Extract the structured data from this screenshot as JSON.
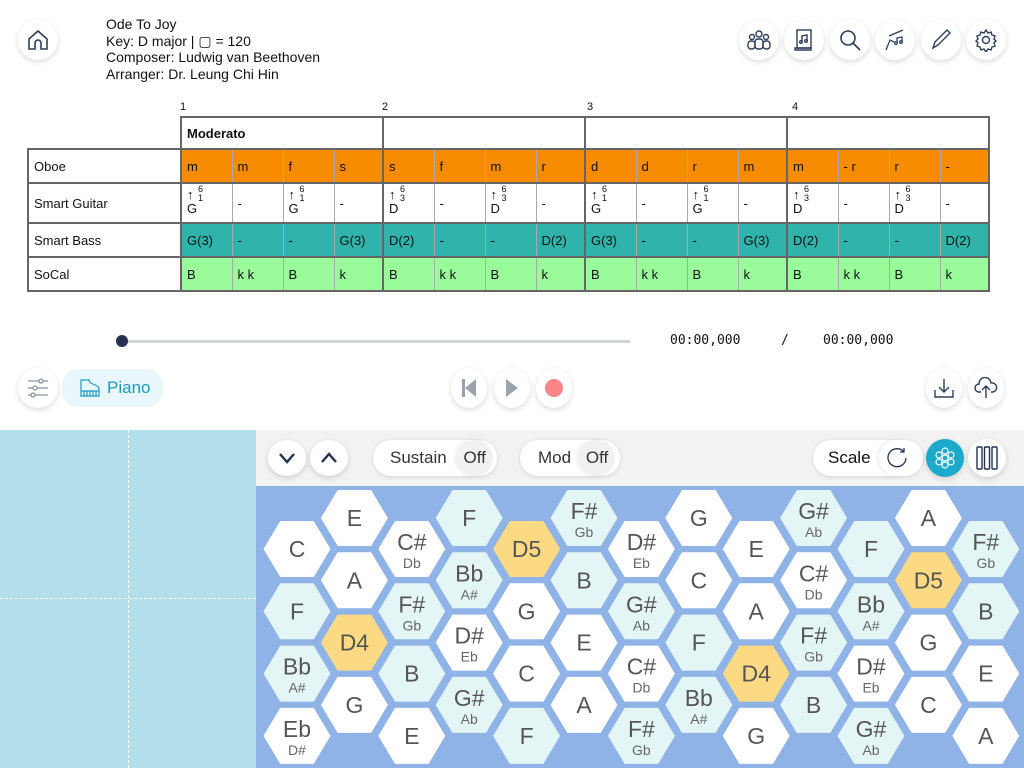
{
  "song": {
    "title": "Ode To Joy",
    "key_line": "Key: D major | ▢ = 120",
    "composer": "Composer: Ludwig van Beethoven",
    "arranger": "Arranger: Dr. Leung Chi Hin"
  },
  "toolbar_icons": [
    "home-icon",
    "users-icon",
    "score-icon",
    "search-icon",
    "conductor-icon",
    "pencil-icon",
    "gear-icon"
  ],
  "score": {
    "measure_numbers": [
      "1",
      "2",
      "3",
      "4"
    ],
    "tempo_marks": [
      "Moderato",
      "",
      "",
      ""
    ],
    "tracks": [
      {
        "name": "Oboe",
        "color": "#f78c00",
        "cells": [
          "m",
          "m",
          "f",
          "s",
          "s",
          "f",
          "m",
          "r",
          "d",
          "d",
          "r",
          "m",
          "m",
          "-   r",
          "r",
          "-"
        ]
      },
      {
        "name": "Smart Guitar",
        "color": "#ffffff",
        "cells": [
          {
            "chord": "G",
            "top": "6",
            "bottom": "1"
          },
          "-",
          {
            "chord": "G",
            "top": "6",
            "bottom": "1"
          },
          "-",
          {
            "chord": "D",
            "top": "6",
            "bottom": "3"
          },
          "-",
          {
            "chord": "D",
            "top": "6",
            "bottom": "3"
          },
          "-",
          {
            "chord": "G",
            "top": "6",
            "bottom": "1"
          },
          "-",
          {
            "chord": "G",
            "top": "6",
            "bottom": "1"
          },
          "-",
          {
            "chord": "D",
            "top": "6",
            "bottom": "3"
          },
          "-",
          {
            "chord": "D",
            "top": "6",
            "bottom": "3"
          },
          "-"
        ]
      },
      {
        "name": "Smart Bass",
        "color": "#2fb3aa",
        "cells": [
          "G(3)",
          "-",
          "-",
          "G(3)",
          "D(2)",
          "-",
          "-",
          "D(2)",
          "G(3)",
          "-",
          "-",
          "G(3)",
          "D(2)",
          "-",
          "-",
          "D(2)"
        ]
      },
      {
        "name": "SoCal",
        "color": "#9afb9b",
        "cells": [
          "B",
          "k   k",
          "B",
          "k",
          "B",
          "k   k",
          "B",
          "k",
          "B",
          "k   k",
          "B",
          "k",
          "B",
          "k   k",
          "B",
          "k"
        ]
      }
    ]
  },
  "playback": {
    "progress": 0,
    "current_time": "00:00,000",
    "separator": "/",
    "total_time": "00:00,000"
  },
  "instrument": {
    "label": "Piano"
  },
  "keyboard": {
    "sustain_label": "Sustain",
    "sustain_value": "Off",
    "mod_label": "Mod",
    "mod_value": "Off",
    "scale_label": "Scale",
    "active_layout": "hexagon",
    "colors": {
      "board": "#8fb3e6",
      "natural": "#ffffff",
      "shaded": "#e4f5f5",
      "highlight": "#fcd983",
      "accent": "#1ba9cc"
    },
    "columns": [
      [
        [
          "C",
          ""
        ],
        [
          "F",
          "",
          "s"
        ],
        [
          "Bb",
          "A#",
          "s"
        ],
        [
          "Eb",
          "D#"
        ]
      ],
      [
        [
          "E",
          ""
        ],
        [
          "A",
          ""
        ],
        [
          "D4",
          "",
          "h"
        ],
        [
          "G",
          ""
        ]
      ],
      [
        [
          "C#",
          "Db"
        ],
        [
          "F#",
          "Gb",
          "s"
        ],
        [
          "B",
          "",
          "s"
        ],
        [
          "E",
          ""
        ]
      ],
      [
        [
          "F",
          "",
          "s"
        ],
        [
          "Bb",
          "A#",
          "s"
        ],
        [
          "D#",
          "Eb"
        ],
        [
          "G#",
          "Ab",
          "s"
        ]
      ],
      [
        [
          "D5",
          "",
          "h"
        ],
        [
          "G",
          ""
        ],
        [
          "C",
          ""
        ],
        [
          "F",
          "",
          "s"
        ]
      ],
      [
        [
          "F#",
          "Gb",
          "s"
        ],
        [
          "B",
          "",
          "s"
        ],
        [
          "E",
          ""
        ],
        [
          "A",
          ""
        ]
      ],
      [
        [
          "D#",
          "Eb"
        ],
        [
          "G#",
          "Ab",
          "s"
        ],
        [
          "C#",
          "Db"
        ],
        [
          "F#",
          "Gb",
          "s"
        ]
      ],
      [
        [
          "G",
          ""
        ],
        [
          "C",
          ""
        ],
        [
          "F",
          "",
          "s"
        ],
        [
          "Bb",
          "A#",
          "s"
        ]
      ],
      [
        [
          "E",
          ""
        ],
        [
          "A",
          ""
        ],
        [
          "D4",
          "",
          "h"
        ],
        [
          "G",
          ""
        ]
      ],
      [
        [
          "G#",
          "Ab",
          "s"
        ],
        [
          "C#",
          "Db"
        ],
        [
          "F#",
          "Gb",
          "s"
        ],
        [
          "B",
          "",
          "s"
        ]
      ],
      [
        [
          "F",
          "",
          "s"
        ],
        [
          "Bb",
          "A#",
          "s"
        ],
        [
          "D#",
          "Eb"
        ],
        [
          "G#",
          "Ab",
          "s"
        ]
      ],
      [
        [
          "A",
          ""
        ],
        [
          "D5",
          "",
          "h"
        ],
        [
          "G",
          ""
        ],
        [
          "C",
          ""
        ]
      ],
      [
        [
          "F#",
          "Gb",
          "s"
        ],
        [
          "B",
          "",
          "s"
        ],
        [
          "E",
          ""
        ],
        [
          "A",
          ""
        ]
      ]
    ]
  }
}
